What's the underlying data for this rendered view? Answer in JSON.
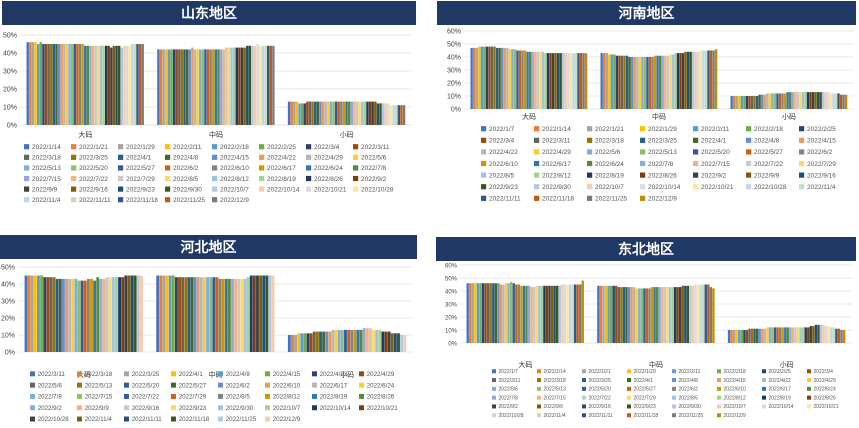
{
  "chart_data": [
    {
      "type": "bar",
      "title": "山东地区",
      "categories": [
        "大码",
        "中码",
        "小码"
      ],
      "yticks": [
        "0%",
        "10%",
        "20%",
        "30%",
        "40%",
        "50%"
      ],
      "ylim": [
        0,
        50
      ],
      "legend": [
        "2022/1/14",
        "2022/1/21",
        "2022/1/29",
        "2022/2/11",
        "2022/2/18",
        "2022/2/25",
        "2022/3/4",
        "2022/3/11",
        "2022/3/18",
        "2022/3/25",
        "2022/4/1",
        "2022/4/8",
        "2022/4/15",
        "2022/4/22",
        "2022/4/29",
        "2022/5/6",
        "2022/5/13",
        "2022/5/20",
        "2022/5/27",
        "2022/6/2",
        "2022/6/10",
        "2022/6/17",
        "2022/6/24",
        "2022/7/8",
        "2022/7/15",
        "2022/7/22",
        "2022/7/29",
        "2022/8/5",
        "2022/8/12",
        "2022/8/19",
        "2022/8/26",
        "2022/9/2",
        "2022/9/9",
        "2022/9/16",
        "2022/9/23",
        "2022/9/30",
        "2022/10/7",
        "2022/10/14",
        "2022/10/21",
        "2022/10/28",
        "2022/11/4",
        "2022/11/11",
        "2022/11/18",
        "2022/11/25",
        "2022/12/9"
      ],
      "series_values": [
        [
          46,
          46,
          46,
          46,
          45,
          46,
          45,
          45,
          45,
          45,
          45,
          45,
          45,
          45,
          45,
          45,
          45,
          45,
          45,
          45,
          45,
          45,
          44,
          44,
          44,
          44,
          44,
          44,
          44,
          44,
          44,
          44,
          43,
          44,
          44,
          44,
          43,
          44,
          44,
          44,
          45,
          45,
          45,
          45,
          45
        ],
        [
          42,
          42,
          42,
          42,
          42,
          42,
          42,
          42,
          42,
          42,
          42,
          42,
          42,
          43,
          42,
          42,
          42,
          42,
          42,
          42,
          42,
          42,
          42,
          42,
          42,
          42,
          43,
          43,
          43,
          43,
          43,
          43,
          43,
          43,
          44,
          44,
          44,
          44,
          45,
          44,
          44,
          44,
          44,
          44,
          44
        ],
        [
          13,
          13,
          13,
          13,
          12,
          12,
          12,
          13,
          13,
          13,
          13,
          13,
          13,
          13,
          13,
          13,
          13,
          13,
          13,
          13,
          13,
          13,
          13,
          13,
          13,
          13,
          13,
          13,
          13,
          13,
          13,
          13,
          13,
          13,
          12,
          12,
          12,
          12,
          12,
          11,
          11,
          11,
          11,
          11,
          11
        ]
      ]
    },
    {
      "type": "bar",
      "title": "河南地区",
      "categories": [
        "大码",
        "中码",
        "小码"
      ],
      "yticks": [
        "0%",
        "10%",
        "20%",
        "30%",
        "40%",
        "50%",
        "60%"
      ],
      "ylim": [
        0,
        60
      ],
      "legend": [
        "2022/1/7",
        "2022/1/14",
        "2022/1/21",
        "2022/1/29",
        "2022/2/11",
        "2022/2/18",
        "2022/2/25",
        "2022/3/4",
        "2022/3/11",
        "2022/3/18",
        "2022/3/25",
        "2022/4/1",
        "2022/4/8",
        "2022/4/15",
        "2022/4/22",
        "2022/4/29",
        "2022/5/6",
        "2022/5/13",
        "2022/5/20",
        "2022/5/27",
        "2022/6/2",
        "2022/6/10",
        "2022/6/17",
        "2022/6/24",
        "2022/7/8",
        "2022/7/15",
        "2022/7/22",
        "2022/7/29",
        "2022/8/5",
        "2022/8/12",
        "2022/8/19",
        "2022/8/26",
        "2022/9/2",
        "2022/9/9",
        "2022/9/16",
        "2022/9/23",
        "2022/9/30",
        "2022/10/7",
        "2022/10/14",
        "2022/10/21",
        "2022/10/28",
        "2022/11/4",
        "2022/11/11",
        "2022/11/18",
        "2022/11/25",
        "2022/12/9"
      ],
      "series_values": [
        [
          47,
          47,
          47,
          48,
          48,
          48,
          48,
          48,
          48,
          48,
          47,
          47,
          47,
          47,
          47,
          46,
          46,
          46,
          45,
          45,
          45,
          45,
          44,
          44,
          44,
          44,
          44,
          44,
          44,
          43,
          43,
          43,
          43,
          43,
          43,
          43,
          43,
          43,
          43,
          43,
          43,
          43,
          43,
          43,
          43,
          43
        ],
        [
          43,
          43,
          43,
          42,
          42,
          42,
          41,
          41,
          41,
          41,
          41,
          40,
          40,
          40,
          40,
          40,
          40,
          40,
          40,
          40,
          40,
          41,
          41,
          41,
          41,
          41,
          41,
          42,
          42,
          43,
          43,
          43,
          43,
          44,
          44,
          44,
          44,
          44,
          44,
          45,
          45,
          45,
          45,
          45,
          45,
          46
        ],
        [
          10,
          10,
          10,
          10,
          10,
          10,
          10,
          10,
          10,
          10,
          10,
          11,
          11,
          11,
          12,
          12,
          12,
          12,
          12,
          12,
          12,
          12,
          13,
          13,
          13,
          13,
          13,
          13,
          13,
          13,
          13,
          13,
          13,
          13,
          13,
          13,
          13,
          13,
          13,
          12,
          12,
          12,
          12,
          11,
          11,
          11
        ]
      ]
    },
    {
      "type": "bar",
      "title": "河北地区",
      "categories": [
        "大码",
        "中码",
        "小码"
      ],
      "yticks": [
        "0%",
        "10%",
        "20%",
        "30%",
        "40%",
        "50%"
      ],
      "ylim": [
        0,
        50
      ],
      "legend": [
        "2022/3/11",
        "2022/3/18",
        "2022/3/25",
        "2022/4/1",
        "2022/4/8",
        "2022/4/15",
        "2022/4/22",
        "2022/4/29",
        "2022/5/6",
        "2022/5/13",
        "2022/5/20",
        "2022/5/27",
        "2022/6/2",
        "2022/6/10",
        "2022/6/17",
        "2022/6/24",
        "2022/7/8",
        "2022/7/15",
        "2022/7/22",
        "2022/7/29",
        "2022/8/5",
        "2022/8/12",
        "2022/8/19",
        "2022/8/26",
        "2022/9/2",
        "2022/9/9",
        "2022/9/16",
        "2022/9/23",
        "2022/9/30",
        "2022/10/7",
        "2022/10/14",
        "2022/10/21",
        "2022/10/28",
        "2022/11/4",
        "2022/11/11",
        "2022/11/18",
        "2022/11/25",
        "2022/12/9"
      ],
      "series_values": [
        [
          45,
          45,
          45,
          45,
          45,
          45,
          44,
          44,
          44,
          44,
          43,
          43,
          43,
          43,
          43,
          43,
          43,
          42,
          42,
          42,
          43,
          43,
          42,
          44,
          43,
          43,
          44,
          44,
          44,
          44,
          44,
          44,
          45,
          45,
          45,
          45,
          45,
          45
        ],
        [
          45,
          45,
          45,
          45,
          45,
          45,
          44,
          44,
          44,
          44,
          44,
          44,
          44,
          44,
          44,
          44,
          44,
          44,
          44,
          44,
          43,
          43,
          43,
          43,
          43,
          43,
          43,
          43,
          43,
          44,
          45,
          45,
          45,
          45,
          45,
          45,
          45,
          45
        ],
        [
          10,
          10,
          10,
          11,
          11,
          11,
          11,
          11,
          12,
          12,
          12,
          12,
          12,
          12,
          13,
          13,
          13,
          13,
          13,
          13,
          13,
          13,
          13,
          13,
          14,
          14,
          14,
          13,
          13,
          13,
          12,
          12,
          12,
          11,
          11,
          11,
          10,
          10
        ]
      ]
    },
    {
      "type": "bar",
      "title": "东北地区",
      "categories": [
        "大码",
        "中码",
        "小码"
      ],
      "yticks": [
        "0%",
        "10%",
        "20%",
        "30%",
        "40%",
        "50%",
        "60%"
      ],
      "ylim": [
        0,
        60
      ],
      "legend": [
        "2022/1/7",
        "2022/1/14",
        "2022/1/21",
        "2022/1/29",
        "2022/2/11",
        "2022/2/18",
        "2022/2/25",
        "2022/3/4",
        "2022/3/11",
        "2022/3/18",
        "2022/3/25",
        "2022/4/1",
        "2022/4/8",
        "2022/4/15",
        "2022/4/22",
        "2022/4/29",
        "2022/5/6",
        "2022/5/13",
        "2022/5/20",
        "2022/5/27",
        "2022/6/2",
        "2022/6/10",
        "2022/6/17",
        "2022/6/24",
        "2022/7/8",
        "2022/7/15",
        "2022/7/22",
        "2022/7/29",
        "2022/8/5",
        "2022/8/12",
        "2022/8/19",
        "2022/8/26",
        "2022/9/2",
        "2022/9/9",
        "2022/9/16",
        "2022/9/23",
        "2022/9/30",
        "2022/10/7",
        "2022/10/14",
        "2022/10/21",
        "2022/10/28",
        "2022/11/4",
        "2022/11/11",
        "2022/11/18",
        "2022/11/25",
        "2022/12/9"
      ],
      "series_values": [
        [
          46,
          46,
          46,
          46,
          46,
          46,
          46,
          46,
          46,
          46,
          46,
          46,
          46,
          45,
          45,
          46,
          46,
          47,
          46,
          45,
          45,
          44,
          44,
          44,
          44,
          43,
          43,
          44,
          44,
          44,
          44,
          44,
          44,
          44,
          44,
          44,
          44,
          45,
          45,
          45,
          45,
          45,
          45,
          45,
          45,
          48
        ],
        [
          44,
          44,
          44,
          44,
          44,
          44,
          44,
          44,
          43,
          43,
          43,
          43,
          43,
          43,
          43,
          42,
          42,
          42,
          42,
          42,
          42,
          43,
          43,
          43,
          43,
          43,
          43,
          43,
          43,
          43,
          43,
          43,
          43,
          44,
          44,
          44,
          44,
          44,
          45,
          45,
          45,
          45,
          45,
          45,
          43,
          42
        ],
        [
          10,
          10,
          10,
          10,
          10,
          10,
          10,
          10,
          11,
          11,
          11,
          11,
          11,
          11,
          11,
          12,
          12,
          12,
          12,
          12,
          12,
          12,
          12,
          12,
          12,
          12,
          12,
          12,
          12,
          12,
          12,
          12,
          13,
          13,
          14,
          14,
          14,
          14,
          13,
          13,
          12,
          12,
          11,
          11,
          10,
          10
        ]
      ]
    }
  ],
  "palette": [
    "#4472c4",
    "#ed7d31",
    "#a5a5a5",
    "#ffc000",
    "#5b9bd5",
    "#70ad47",
    "#264478",
    "#9e480e",
    "#636363",
    "#997300",
    "#255e91",
    "#43682b",
    "#698ed0",
    "#f1975a",
    "#b7b7b7",
    "#ffcd33",
    "#7cafdd",
    "#8cc168",
    "#335aa1",
    "#d26012",
    "#848484",
    "#cc9a00",
    "#3275b8",
    "#5a8a39",
    "#8faadc",
    "#f4b183",
    "#c9c9c9",
    "#ffd966",
    "#9dc3e6",
    "#a9d18e",
    "#1f3864",
    "#843c0c",
    "#404040",
    "#7f6000",
    "#1f4e79",
    "#385723",
    "#b4c7e7",
    "#f8cbad",
    "#dbdbdb",
    "#ffe699",
    "#bdd7ee",
    "#c5e0b4",
    "#2f5597",
    "#c55a11",
    "#7b7b7b",
    "#bf9000"
  ]
}
